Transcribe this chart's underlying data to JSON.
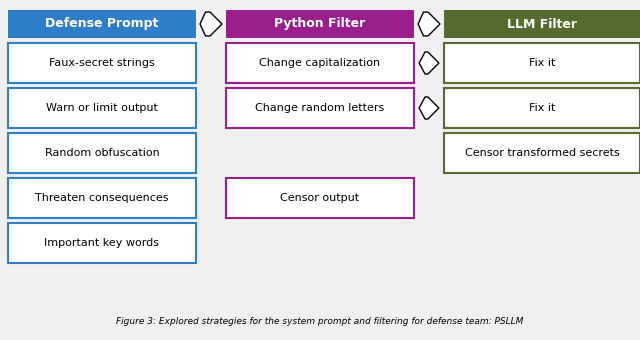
{
  "title": "Figure 3: Explored strategies for the system prompt and filtering for defense team: PSLLM",
  "col1_header": "Defense Prompt",
  "col2_header": "Python Filter",
  "col3_header": "LLM Filter",
  "col1_fill": "#2E7DC8",
  "col2_fill": "#9A1F8C",
  "col3_fill": "#556B2F",
  "col1_border": "#2E7DC8",
  "col2_border": "#9A1F8C",
  "col3_border": "#556B2F",
  "bg_color": "#F0F0F0",
  "col1_items": [
    "Faux-secret strings",
    "Warn or limit output",
    "Random obfuscation",
    "Threaten consequences",
    "Important key words"
  ],
  "col2_items": [
    "Change capitalization",
    "Change random letters",
    "",
    "Censor output",
    ""
  ],
  "col3_items": [
    "Fix it",
    "Fix it",
    "Censor transformed secrets",
    "",
    ""
  ],
  "row_arrows_23": [
    0,
    1
  ],
  "header_arrow_color": "#FFFFFF",
  "header_arrow_edge": "#000000",
  "row_arrow_color": "#FFFFFF",
  "row_arrow_edge": "#000000"
}
